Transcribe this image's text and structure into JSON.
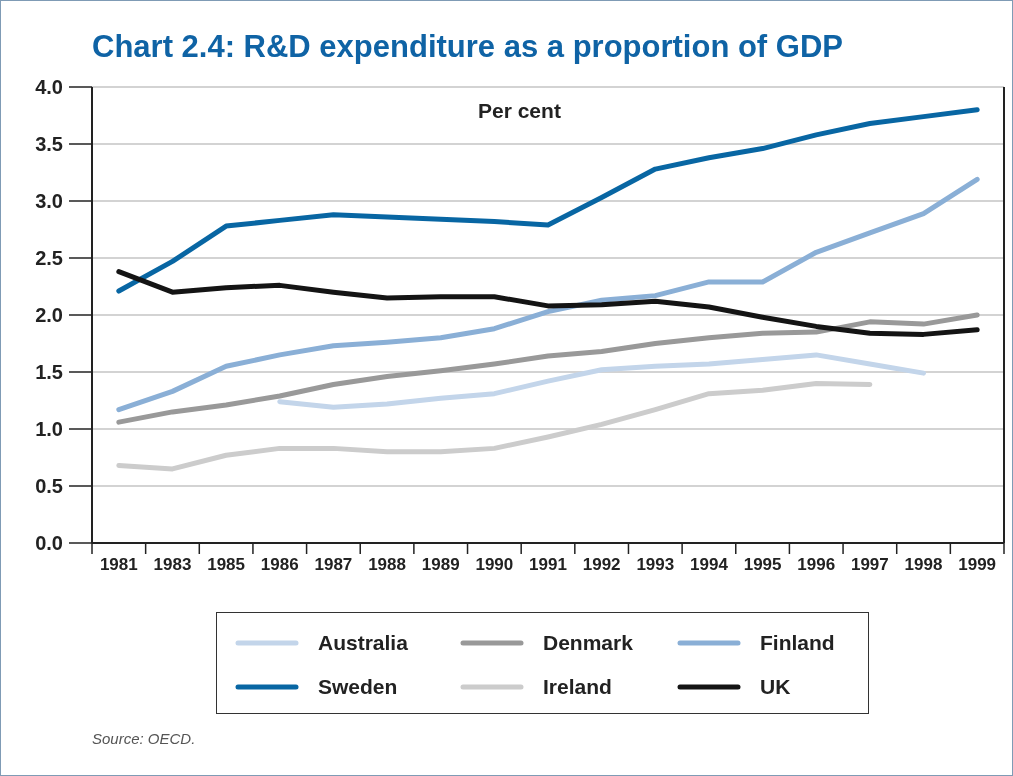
{
  "chart_data": {
    "type": "line",
    "title": "Chart 2.4: R&D expenditure as a proportion of GDP",
    "ylabel": "Per cent",
    "categories": [
      "1981",
      "1983",
      "1985",
      "1986",
      "1987",
      "1988",
      "1989",
      "1990",
      "1991",
      "1992",
      "1993",
      "1994",
      "1995",
      "1996",
      "1997",
      "1998",
      "1999"
    ],
    "series": [
      {
        "name": "Australia",
        "color": "#c3d5ea",
        "values": [
          null,
          null,
          null,
          1.24,
          1.19,
          1.22,
          1.27,
          1.31,
          1.42,
          1.52,
          1.55,
          1.57,
          1.61,
          1.65,
          1.57,
          1.49,
          null
        ]
      },
      {
        "name": "Denmark",
        "color": "#999999",
        "values": [
          1.06,
          1.15,
          1.21,
          1.29,
          1.39,
          1.46,
          1.51,
          1.57,
          1.64,
          1.68,
          1.75,
          1.8,
          1.84,
          1.85,
          1.94,
          1.92,
          2.0
        ]
      },
      {
        "name": "Finland",
        "color": "#8aafd6",
        "values": [
          1.17,
          1.33,
          1.55,
          1.65,
          1.73,
          1.76,
          1.8,
          1.88,
          2.03,
          2.13,
          2.17,
          2.29,
          2.29,
          2.55,
          2.72,
          2.89,
          3.19
        ]
      },
      {
        "name": "Sweden",
        "color": "#0866a3",
        "values": [
          2.21,
          2.47,
          2.78,
          2.83,
          2.88,
          2.86,
          2.84,
          2.82,
          2.79,
          3.03,
          3.28,
          3.38,
          3.46,
          3.58,
          3.68,
          3.74,
          3.8
        ]
      },
      {
        "name": "Ireland",
        "color": "#cccccc",
        "values": [
          0.68,
          0.65,
          0.77,
          0.83,
          0.83,
          0.8,
          0.8,
          0.83,
          0.93,
          1.04,
          1.17,
          1.31,
          1.34,
          1.4,
          1.39,
          null,
          null
        ]
      },
      {
        "name": "UK",
        "color": "#141414",
        "values": [
          2.38,
          2.2,
          2.24,
          2.26,
          2.2,
          2.15,
          2.16,
          2.16,
          2.08,
          2.09,
          2.12,
          2.07,
          1.98,
          1.9,
          1.84,
          1.83,
          1.87
        ]
      }
    ],
    "ylim": [
      0,
      4
    ],
    "yticks": [
      {
        "value": 0,
        "label": "0.0"
      },
      {
        "value": 0.5,
        "label": "0.5"
      },
      {
        "value": 1,
        "label": "1.0"
      },
      {
        "value": 1.5,
        "label": "1.5"
      },
      {
        "value": 2,
        "label": "2.0"
      },
      {
        "value": 2.5,
        "label": "2.5"
      },
      {
        "value": 3,
        "label": "3.0"
      },
      {
        "value": 3.5,
        "label": "3.5"
      },
      {
        "value": 4,
        "label": "4.0"
      }
    ],
    "grid": "y",
    "legend": "bottom",
    "marker": "none",
    "line_style": "solid",
    "annotations": [
      "Source: OECD."
    ]
  }
}
